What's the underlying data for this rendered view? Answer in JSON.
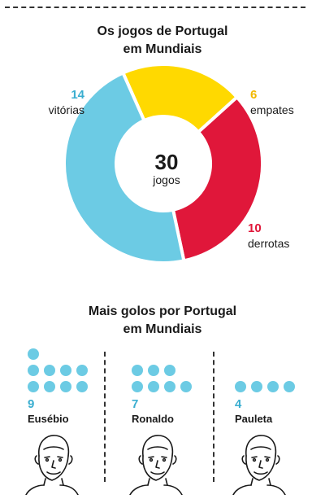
{
  "colors": {
    "wins": "#6ccbe4",
    "draws": "#ffd900",
    "losses": "#e0173a"
  },
  "chart_data": [
    {
      "type": "pie",
      "title": "Os jogos de Portugal em Mundiais",
      "title_lines": [
        "Os jogos de Portugal",
        "em Mundiais"
      ],
      "total": {
        "value": "30",
        "label": "jogos"
      },
      "slices": [
        {
          "key": "wins",
          "value": 14,
          "label": "vitórias"
        },
        {
          "key": "draws",
          "value": 6,
          "label": "empates"
        },
        {
          "key": "losses",
          "value": 10,
          "label": "derrotas"
        }
      ]
    },
    {
      "type": "bar",
      "title": "Mais golos por Portugal em Mundiais",
      "title_lines": [
        "Mais golos por Portugal",
        "em Mundiais"
      ],
      "players": [
        {
          "name": "Eusébio",
          "goals": 9
        },
        {
          "name": "Ronaldo",
          "goals": 7
        },
        {
          "name": "Pauleta",
          "goals": 4
        }
      ]
    }
  ]
}
